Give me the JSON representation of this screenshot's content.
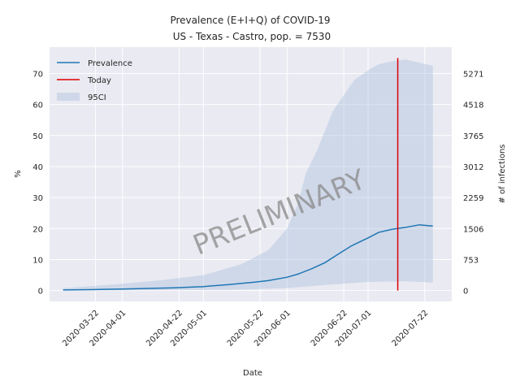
{
  "chart_data": {
    "type": "line",
    "title": "Prevalence (E+I+Q) of COVID-19",
    "subtitle": " US - Texas - Castro, pop. = 7530",
    "xlabel": "Date",
    "ylabel": "%",
    "ylabel_right": "# of infections",
    "ylim": [
      -3.5,
      78.5
    ],
    "grid": true,
    "legend_position": "top-left",
    "watermark": "PRELIMINARY",
    "x_ticks": [
      "2020-03-22",
      "2020-04-01",
      "2020-04-22",
      "2020-05-01",
      "2020-05-22",
      "2020-06-01",
      "2020-06-22",
      "2020-07-01",
      "2020-07-22"
    ],
    "y_ticks": [
      0,
      10,
      20,
      30,
      40,
      50,
      60,
      70
    ],
    "right_ticks": [
      {
        "pct": 0,
        "label": "0"
      },
      {
        "pct": 10,
        "label": "753"
      },
      {
        "pct": 20,
        "label": "1506"
      },
      {
        "pct": 30,
        "label": "2259"
      },
      {
        "pct": 40,
        "label": "3012"
      },
      {
        "pct": 50,
        "label": "3765"
      },
      {
        "pct": 60,
        "label": "4518"
      },
      {
        "pct": 70,
        "label": "5271"
      }
    ],
    "x_range": [
      "2020-03-05",
      "2020-08-01"
    ],
    "today": "2020-07-12",
    "today_top": 75,
    "series": [
      {
        "name": "Prevalence",
        "color": "#1f77b4",
        "points": [
          [
            "2020-03-10",
            0.2
          ],
          [
            "2020-03-20",
            0.3
          ],
          [
            "2020-04-01",
            0.5
          ],
          [
            "2020-04-10",
            0.7
          ],
          [
            "2020-04-20",
            0.9
          ],
          [
            "2020-05-01",
            1.3
          ],
          [
            "2020-05-10",
            1.9
          ],
          [
            "2020-05-20",
            2.7
          ],
          [
            "2020-05-25",
            3.2
          ],
          [
            "2020-06-01",
            4.3
          ],
          [
            "2020-06-05",
            5.3
          ],
          [
            "2020-06-10",
            7.0
          ],
          [
            "2020-06-15",
            9.0
          ],
          [
            "2020-06-20",
            11.8
          ],
          [
            "2020-06-25",
            14.5
          ],
          [
            "2020-07-01",
            17.0
          ],
          [
            "2020-07-05",
            18.8
          ],
          [
            "2020-07-10",
            19.8
          ],
          [
            "2020-07-15",
            20.4
          ],
          [
            "2020-07-20",
            21.2
          ],
          [
            "2020-07-25",
            20.8
          ]
        ]
      },
      {
        "name": "95CI",
        "color": "#b0c4de",
        "upper": [
          [
            "2020-03-10",
            0.8
          ],
          [
            "2020-03-22",
            1.5
          ],
          [
            "2020-04-01",
            2.2
          ],
          [
            "2020-04-15",
            3.3
          ],
          [
            "2020-05-01",
            5.0
          ],
          [
            "2020-05-15",
            8.5
          ],
          [
            "2020-05-25",
            13.0
          ],
          [
            "2020-06-01",
            20.0
          ],
          [
            "2020-06-05",
            28.0
          ],
          [
            "2020-06-08",
            38.0
          ],
          [
            "2020-06-12",
            45.0
          ],
          [
            "2020-06-18",
            58.0
          ],
          [
            "2020-06-22",
            63.0
          ],
          [
            "2020-06-26",
            68.0
          ],
          [
            "2020-07-01",
            71.0
          ],
          [
            "2020-07-05",
            73.0
          ],
          [
            "2020-07-10",
            74.0
          ],
          [
            "2020-07-15",
            74.5
          ],
          [
            "2020-07-20",
            73.5
          ],
          [
            "2020-07-25",
            72.5
          ]
        ],
        "lower": [
          [
            "2020-03-10",
            0.0
          ],
          [
            "2020-04-15",
            0.1
          ],
          [
            "2020-05-15",
            0.3
          ],
          [
            "2020-06-01",
            0.8
          ],
          [
            "2020-06-15",
            1.8
          ],
          [
            "2020-07-01",
            2.8
          ],
          [
            "2020-07-15",
            3.0
          ],
          [
            "2020-07-25",
            2.6
          ]
        ]
      },
      {
        "name": "Today",
        "color": "#e00000"
      }
    ]
  }
}
